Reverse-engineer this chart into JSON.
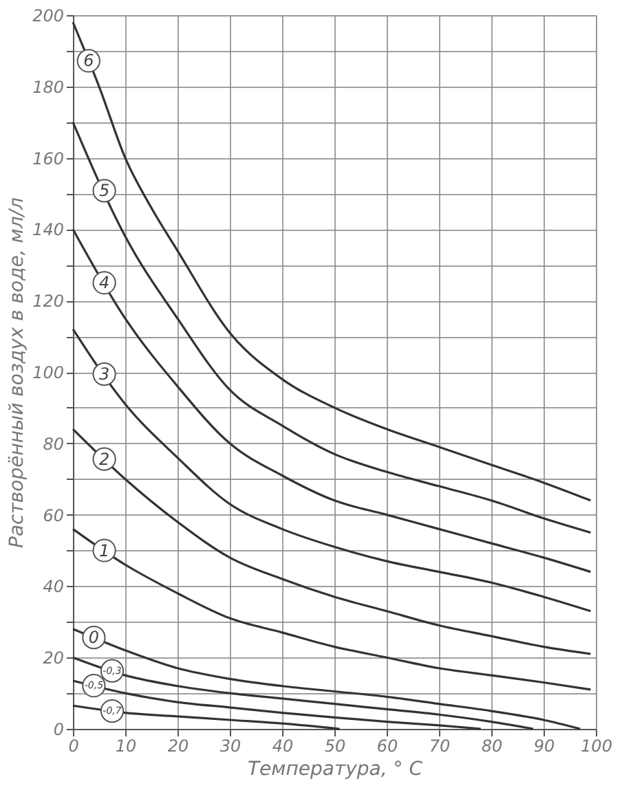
{
  "chart_data": {
    "type": "line",
    "xlabel": "Температура, ° С",
    "ylabel": "Растворённый воздух в воде, мл/л",
    "xlim": [
      0,
      100
    ],
    "ylim": [
      0,
      200
    ],
    "xticks": [
      0,
      10,
      20,
      30,
      40,
      50,
      60,
      70,
      80,
      90,
      100
    ],
    "yticks": [
      0,
      {
        "value": 10,
        "label": null
      },
      20,
      {
        "value": 30,
        "label": null
      },
      40,
      {
        "value": 50,
        "label": null
      },
      60,
      {
        "value": 70,
        "label": null
      },
      80,
      {
        "value": 90,
        "label": null
      },
      100,
      {
        "value": 110,
        "label": null
      },
      120,
      {
        "value": 130,
        "label": null
      },
      140,
      {
        "value": 150,
        "label": null
      },
      160,
      {
        "value": 170,
        "label": null
      },
      180,
      {
        "value": 190,
        "label": null
      },
      200
    ],
    "grid": true,
    "marker": "none",
    "line_style": "solid",
    "series": [
      {
        "name": "6",
        "color": "#333333",
        "x": [
          0,
          5,
          10,
          15,
          20,
          30,
          40,
          50,
          60,
          70,
          80,
          90,
          99
        ],
        "values": [
          198,
          180,
          160,
          146,
          134,
          111,
          98,
          90,
          84,
          79,
          74,
          69,
          64
        ]
      },
      {
        "name": "5",
        "color": "#333333",
        "x": [
          0,
          10,
          20,
          30,
          40,
          50,
          60,
          70,
          80,
          90,
          99
        ],
        "values": [
          170,
          138,
          115,
          95,
          85,
          77,
          72,
          68,
          64,
          59,
          55
        ]
      },
      {
        "name": "4",
        "color": "#333333",
        "x": [
          0,
          10,
          20,
          30,
          40,
          50,
          60,
          70,
          80,
          90,
          99
        ],
        "values": [
          140,
          115,
          96,
          80,
          71,
          64,
          60,
          56,
          52,
          48,
          44
        ]
      },
      {
        "name": "3",
        "color": "#333333",
        "x": [
          0,
          10,
          20,
          30,
          40,
          50,
          60,
          70,
          80,
          90,
          99
        ],
        "values": [
          112,
          91,
          76,
          63,
          56,
          51,
          47,
          44,
          41,
          37,
          33
        ]
      },
      {
        "name": "2",
        "color": "#333333",
        "x": [
          0,
          10,
          20,
          30,
          40,
          50,
          60,
          70,
          80,
          90,
          99
        ],
        "values": [
          84,
          70,
          58,
          48,
          42,
          37,
          33,
          29,
          26,
          23,
          21
        ]
      },
      {
        "name": "1",
        "color": "#333333",
        "x": [
          0,
          10,
          20,
          30,
          40,
          50,
          60,
          70,
          80,
          90,
          99
        ],
        "values": [
          56,
          46,
          38,
          31,
          27,
          23,
          20,
          17,
          15,
          13,
          11
        ]
      },
      {
        "name": "0",
        "color": "#333333",
        "x": [
          0,
          10,
          20,
          30,
          40,
          50,
          60,
          70,
          80,
          90,
          97
        ],
        "values": [
          28,
          22,
          17,
          14,
          12,
          10.5,
          9,
          7,
          5,
          2.5,
          0
        ]
      },
      {
        "name": "-0,3",
        "color": "#333333",
        "x": [
          0,
          10,
          20,
          30,
          40,
          50,
          60,
          70,
          80,
          88
        ],
        "values": [
          20,
          15,
          12,
          10,
          8.5,
          7,
          5.5,
          4,
          2,
          0
        ]
      },
      {
        "name": "-0,5",
        "color": "#333333",
        "x": [
          0,
          10,
          20,
          30,
          40,
          50,
          60,
          70,
          78
        ],
        "values": [
          13.5,
          10,
          7.5,
          6,
          4.5,
          3.2,
          2,
          1,
          0
        ]
      },
      {
        "name": "-0,7",
        "color": "#333333",
        "x": [
          0,
          10,
          20,
          30,
          40,
          51
        ],
        "values": [
          6.5,
          4.5,
          3.5,
          2.5,
          1.5,
          0
        ]
      }
    ]
  }
}
